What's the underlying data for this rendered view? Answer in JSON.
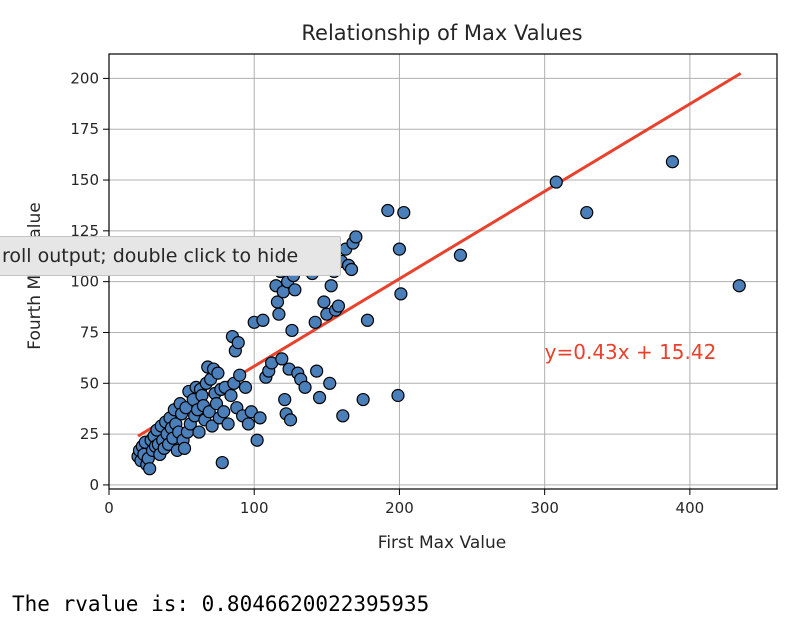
{
  "tooltip": {
    "text": "roll output; double click to hide"
  },
  "output": {
    "text": "The rvalue is: 0.8046620022395935"
  },
  "chart_data": {
    "type": "scatter",
    "title": "Relationship of Max Values",
    "xlabel": "First Max Value",
    "ylabel": "Fourth Max Value",
    "xlim": [
      0,
      460
    ],
    "ylim": [
      -2,
      212
    ],
    "xticks": [
      0,
      100,
      200,
      300,
      400
    ],
    "yticks": [
      0,
      25,
      50,
      75,
      100,
      125,
      150,
      175,
      200
    ],
    "grid": true,
    "colors": {
      "marker_fill": "#4a7fba",
      "marker_edge": "#000000",
      "line": "#e8412c"
    },
    "regression": {
      "slope": 0.43,
      "intercept": 15.42,
      "x_range": [
        20,
        435
      ]
    },
    "annotation": {
      "text": "y=0.43x + 15.42",
      "x": 300,
      "y": 62
    },
    "points": [
      [
        20,
        14
      ],
      [
        21,
        17
      ],
      [
        22,
        12
      ],
      [
        23,
        19
      ],
      [
        24,
        15
      ],
      [
        25,
        21
      ],
      [
        26,
        10
      ],
      [
        27,
        13
      ],
      [
        28,
        8
      ],
      [
        29,
        22
      ],
      [
        30,
        17
      ],
      [
        31,
        24
      ],
      [
        32,
        19
      ],
      [
        33,
        27
      ],
      [
        34,
        20
      ],
      [
        35,
        15
      ],
      [
        36,
        29
      ],
      [
        37,
        22
      ],
      [
        38,
        18
      ],
      [
        39,
        31
      ],
      [
        40,
        25
      ],
      [
        41,
        20
      ],
      [
        42,
        33
      ],
      [
        43,
        28
      ],
      [
        44,
        23
      ],
      [
        45,
        37
      ],
      [
        46,
        30
      ],
      [
        47,
        17
      ],
      [
        48,
        26
      ],
      [
        49,
        40
      ],
      [
        50,
        35
      ],
      [
        51,
        22
      ],
      [
        52,
        18
      ],
      [
        53,
        38
      ],
      [
        54,
        26
      ],
      [
        55,
        46
      ],
      [
        56,
        30
      ],
      [
        58,
        42
      ],
      [
        59,
        34
      ],
      [
        60,
        48
      ],
      [
        61,
        37
      ],
      [
        62,
        26
      ],
      [
        63,
        47
      ],
      [
        64,
        44
      ],
      [
        65,
        39
      ],
      [
        66,
        32
      ],
      [
        67,
        50
      ],
      [
        68,
        58
      ],
      [
        69,
        36
      ],
      [
        70,
        52
      ],
      [
        71,
        29
      ],
      [
        72,
        57
      ],
      [
        73,
        45
      ],
      [
        74,
        40
      ],
      [
        75,
        55
      ],
      [
        76,
        33
      ],
      [
        77,
        47
      ],
      [
        78,
        11
      ],
      [
        79,
        36
      ],
      [
        80,
        48
      ],
      [
        82,
        30
      ],
      [
        84,
        44
      ],
      [
        85,
        73
      ],
      [
        86,
        50
      ],
      [
        87,
        66
      ],
      [
        88,
        38
      ],
      [
        89,
        70
      ],
      [
        90,
        54
      ],
      [
        92,
        34
      ],
      [
        94,
        48
      ],
      [
        96,
        30
      ],
      [
        98,
        36
      ],
      [
        100,
        80
      ],
      [
        102,
        22
      ],
      [
        104,
        33
      ],
      [
        106,
        81
      ],
      [
        108,
        53
      ],
      [
        110,
        56
      ],
      [
        112,
        60
      ],
      [
        115,
        98
      ],
      [
        116,
        90
      ],
      [
        117,
        84
      ],
      [
        118,
        105
      ],
      [
        119,
        62
      ],
      [
        120,
        95
      ],
      [
        121,
        42
      ],
      [
        122,
        35
      ],
      [
        123,
        100
      ],
      [
        124,
        57
      ],
      [
        125,
        32
      ],
      [
        126,
        76
      ],
      [
        127,
        103
      ],
      [
        128,
        96
      ],
      [
        130,
        55
      ],
      [
        132,
        52
      ],
      [
        135,
        48
      ],
      [
        138,
        108
      ],
      [
        140,
        104
      ],
      [
        142,
        80
      ],
      [
        143,
        56
      ],
      [
        145,
        43
      ],
      [
        148,
        90
      ],
      [
        150,
        84
      ],
      [
        152,
        50
      ],
      [
        153,
        98
      ],
      [
        155,
        105
      ],
      [
        156,
        86
      ],
      [
        158,
        88
      ],
      [
        160,
        110
      ],
      [
        161,
        34
      ],
      [
        163,
        116
      ],
      [
        165,
        108
      ],
      [
        167,
        106
      ],
      [
        168,
        119
      ],
      [
        170,
        122
      ],
      [
        175,
        42
      ],
      [
        178,
        81
      ],
      [
        192,
        135
      ],
      [
        199,
        44
      ],
      [
        200,
        116
      ],
      [
        201,
        94
      ],
      [
        203,
        134
      ],
      [
        242,
        113
      ],
      [
        308,
        149
      ],
      [
        329,
        134
      ],
      [
        388,
        159
      ],
      [
        434,
        98
      ]
    ]
  }
}
